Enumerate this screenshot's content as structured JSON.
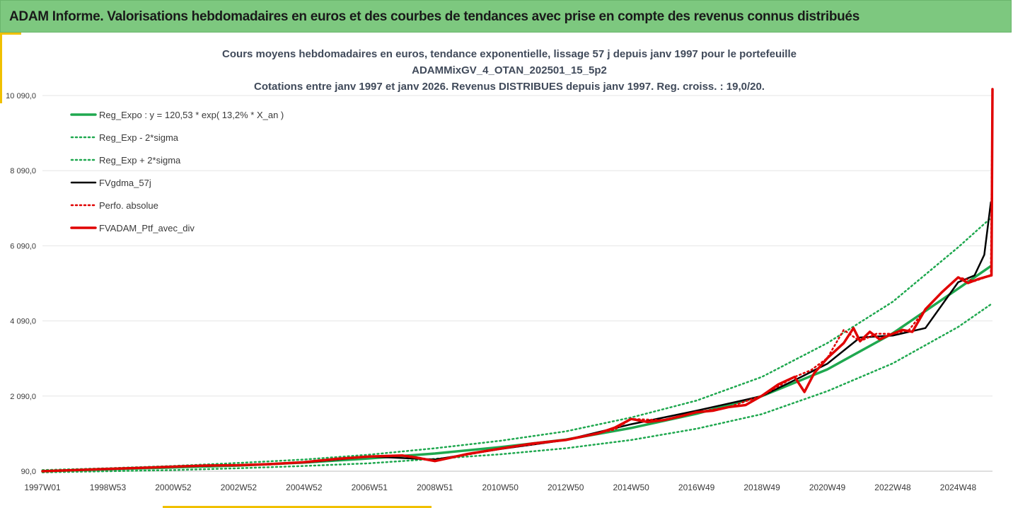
{
  "banner": {
    "title": "ADAM Informe. Valorisations hebdomadaires en euros et des courbes de tendances avec prise en compte des revenus connus distribués"
  },
  "colors": {
    "banner_bg": "#7dc87f",
    "reg_expo": "#1fa84f",
    "sigma": "#1fa84f",
    "fvgdma": "#000000",
    "perfo": "#e00000",
    "fvadam": "#e00000",
    "grid": "#e6e6e6",
    "accent": "#f0c000"
  },
  "chart_data": {
    "type": "line",
    "title_lines": [
      "Cours moyens hebdomadaires  en euros, tendance exponentielle, lissage 57 j depuis janv 1997 pour le portefeuille",
      "ADAMMixGV_4_OTAN_202501_15_5p2",
      "Cotations entre janv 1997 et janv 2026. Revenus DISTRIBUES depuis janv 1997. Reg. croiss. : 19,0/20."
    ],
    "xlabel": "",
    "ylabel": "",
    "x_range_years": [
      1997.0,
      2026.05
    ],
    "ylim": [
      90,
      10090
    ],
    "grid": "horizontal",
    "legend_position": "top-left",
    "y_ticks": [
      {
        "value": 90,
        "label": "90,0"
      },
      {
        "value": 2090,
        "label": "2 090,0"
      },
      {
        "value": 4090,
        "label": "4 090,0"
      },
      {
        "value": 6090,
        "label": "6 090,0"
      },
      {
        "value": 8090,
        "label": "8 090,0"
      },
      {
        "value": 10090,
        "label": "10 090,0"
      }
    ],
    "x_ticks": [
      {
        "year": 1997.0,
        "label": "1997W01"
      },
      {
        "year": 1999.0,
        "label": "1998W53"
      },
      {
        "year": 2001.0,
        "label": "2000W52"
      },
      {
        "year": 2003.0,
        "label": "2002W52"
      },
      {
        "year": 2005.0,
        "label": "2004W52"
      },
      {
        "year": 2007.0,
        "label": "2006W51"
      },
      {
        "year": 2009.0,
        "label": "2008W51"
      },
      {
        "year": 2011.0,
        "label": "2010W50"
      },
      {
        "year": 2013.0,
        "label": "2012W50"
      },
      {
        "year": 2015.0,
        "label": "2014W50"
      },
      {
        "year": 2017.0,
        "label": "2016W49"
      },
      {
        "year": 2019.0,
        "label": "2018W49"
      },
      {
        "year": 2021.0,
        "label": "2020W49"
      },
      {
        "year": 2023.0,
        "label": "2022W48"
      },
      {
        "year": 2025.0,
        "label": "2024W48"
      }
    ],
    "series": [
      {
        "name": "Reg_Expo : y = 120,53 * exp( 13,2% *  X_an )",
        "style": "solid-thick",
        "color": "#1fa84f",
        "x": [
          1997,
          1999,
          2001,
          2003,
          2005,
          2007,
          2009,
          2011,
          2013,
          2015,
          2017,
          2019,
          2021,
          2023,
          2025,
          2026
        ],
        "y": [
          90,
          140,
          190,
          240,
          320,
          430,
          560,
          730,
          930,
          1240,
          1620,
          2090,
          2800,
          3760,
          4950,
          5550
        ]
      },
      {
        "name": "Reg_Exp - 2*sigma",
        "style": "dotted",
        "color": "#1fa84f",
        "x": [
          1997,
          1999,
          2001,
          2003,
          2005,
          2007,
          2009,
          2011,
          2013,
          2015,
          2017,
          2019,
          2021,
          2023,
          2025,
          2026
        ],
        "y": [
          60,
          90,
          120,
          170,
          230,
          300,
          420,
          540,
          700,
          920,
          1220,
          1610,
          2220,
          2960,
          3930,
          4530
        ]
      },
      {
        "name": "Reg_Exp + 2*sigma",
        "style": "dotted",
        "color": "#1fa84f",
        "x": [
          1997,
          1999,
          2001,
          2003,
          2005,
          2007,
          2009,
          2011,
          2013,
          2015,
          2017,
          2019,
          2021,
          2023,
          2025,
          2026
        ],
        "y": [
          120,
          170,
          230,
          310,
          400,
          530,
          700,
          900,
          1150,
          1520,
          1970,
          2600,
          3500,
          4600,
          6050,
          6830
        ]
      },
      {
        "name": "FVgdma_57j",
        "style": "solid",
        "color": "#000000",
        "x": [
          1997,
          1999,
          2001,
          2003,
          2005,
          2007,
          2009,
          2011,
          2013,
          2015,
          2017,
          2019,
          2020.2,
          2021,
          2022,
          2023,
          2024,
          2025,
          2025.5,
          2025.8,
          2026
        ],
        "y": [
          90,
          140,
          210,
          250,
          320,
          480,
          400,
          680,
          920,
          1340,
          1700,
          2090,
          2600,
          2950,
          3650,
          3700,
          3900,
          5120,
          5300,
          5850,
          7250
        ]
      },
      {
        "name": "Perfo. absolue",
        "style": "dotted",
        "color": "#e00000",
        "x": [
          1997,
          1999,
          2001,
          2003,
          2005,
          2007,
          2008.2,
          2009,
          2011,
          2013,
          2014.5,
          2015,
          2016,
          2017,
          2018,
          2019,
          2020,
          2020.5,
          2021,
          2021.5,
          2022,
          2022.5,
          2023,
          2023.5,
          2024,
          2024.5,
          2025,
          2025.5,
          2026,
          2026.05
        ],
        "y": [
          90,
          150,
          210,
          250,
          330,
          480,
          500,
          370,
          690,
          920,
          1200,
          1480,
          1450,
          1660,
          1800,
          2100,
          2600,
          2780,
          3100,
          3850,
          3550,
          3750,
          3750,
          3850,
          4400,
          4850,
          5250,
          5150,
          5300,
          10260
        ]
      },
      {
        "name": "FVADAM_Ptf_avec_div",
        "style": "solid-thick",
        "color": "#e00000",
        "x": [
          1997,
          1998,
          1999,
          2000,
          2001,
          2002,
          2003,
          2004,
          2005,
          2006,
          2007,
          2008,
          2008.5,
          2009,
          2010,
          2011,
          2012,
          2013,
          2014,
          2014.5,
          2015,
          2015.5,
          2016,
          2016.5,
          2017,
          2017.5,
          2018,
          2018.5,
          2019,
          2019.5,
          2020,
          2020.3,
          2020.6,
          2021,
          2021.5,
          2021.8,
          2022,
          2022.3,
          2022.6,
          2023,
          2023.3,
          2023.6,
          2024,
          2024.5,
          2025,
          2025.3,
          2025.6,
          2026,
          2026.02,
          2026.05
        ],
        "y": [
          90,
          120,
          150,
          180,
          210,
          240,
          250,
          280,
          330,
          420,
          480,
          510,
          440,
          360,
          550,
          690,
          830,
          920,
          1100,
          1250,
          1480,
          1400,
          1450,
          1550,
          1660,
          1700,
          1800,
          1850,
          2100,
          2400,
          2600,
          2200,
          2700,
          3100,
          3500,
          3900,
          3550,
          3800,
          3600,
          3750,
          3850,
          3800,
          4400,
          4850,
          5250,
          5100,
          5200,
          5300,
          5300,
          10260
        ]
      }
    ]
  }
}
